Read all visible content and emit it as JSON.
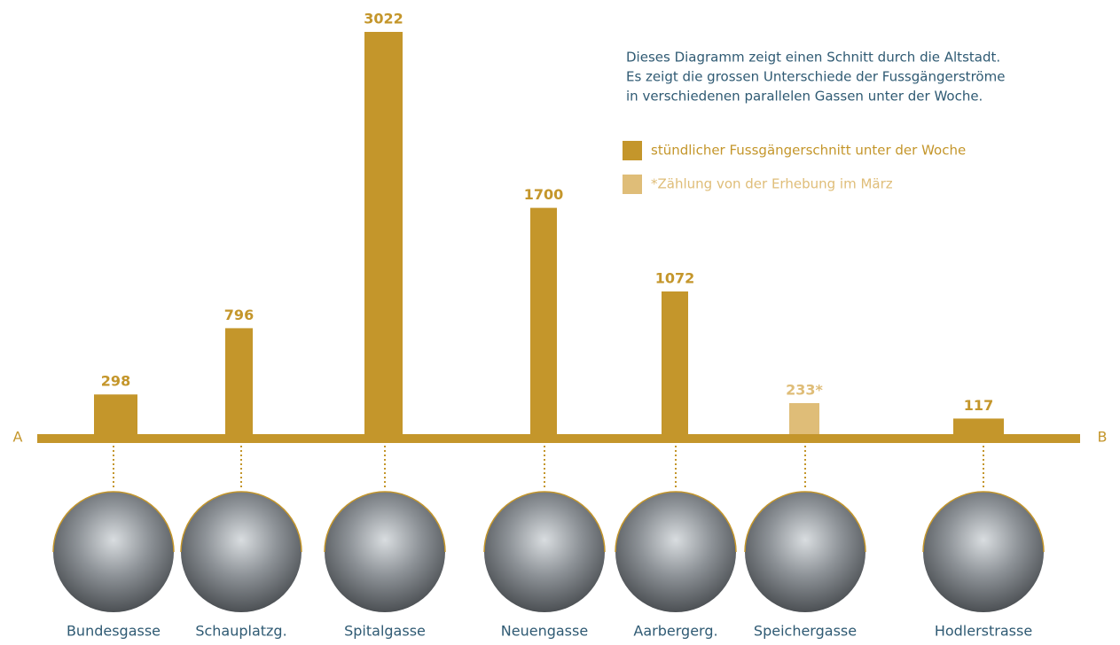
{
  "chart_data": {
    "type": "bar",
    "annotation": [
      "Dieses Diagramm zeigt einen Schnitt durch die Altstadt.",
      "Es zeigt die grossen Unterschiede der Fussgängerströme",
      "in verschiedenen parallelen Gassen unter der Woche."
    ],
    "categories": [
      "Bundesgasse",
      "Schauplatzg.",
      "Spitalgasse",
      "Neuengasse",
      "Aarbergerg.",
      "Speichergasse",
      "Hodlerstrasse"
    ],
    "values": [
      298,
      796,
      3022,
      1700,
      1072,
      233,
      117
    ],
    "value_labels": [
      "298",
      "796",
      "3022",
      "1700",
      "1072",
      "233*",
      "117"
    ],
    "colors": [
      "#c4962b",
      "#c4962b",
      "#c4962b",
      "#c4962b",
      "#c4962b",
      "#dfbd78",
      "#c4962b"
    ],
    "legend": [
      {
        "name": "stündlicher Fussgängerschnitt unter der Woche",
        "color": "#c4962b"
      },
      {
        "name": "*Zählung von der Erhebung im März",
        "color": "#dfbd78"
      }
    ],
    "start_label": "A",
    "end_label": "B"
  }
}
